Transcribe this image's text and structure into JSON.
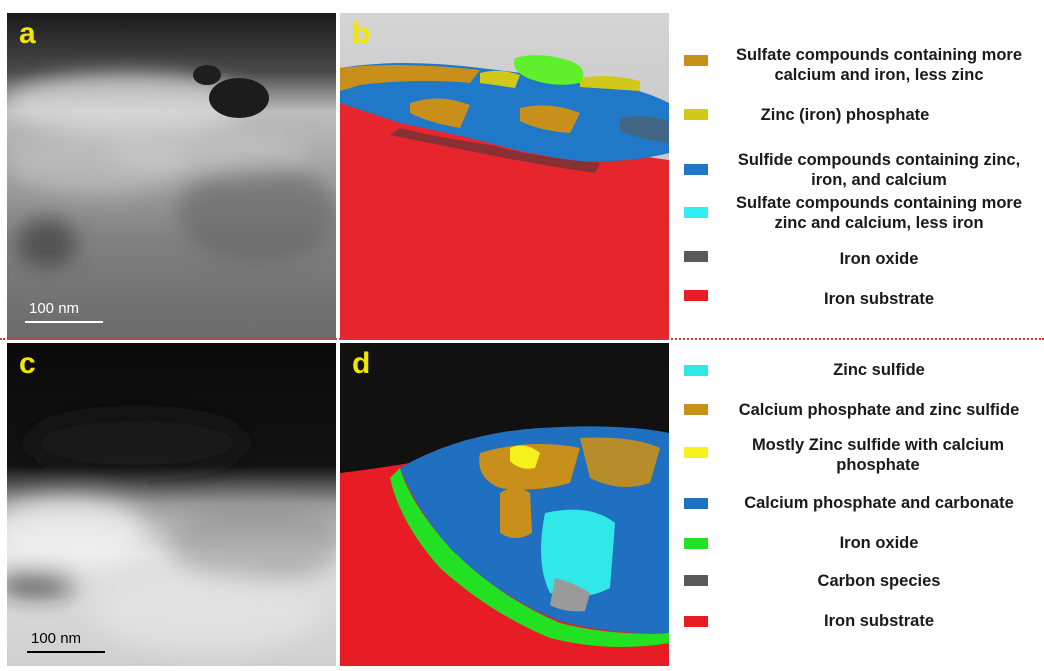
{
  "panels": {
    "a": {
      "label": "a",
      "scale_bar": "100 nm"
    },
    "b": {
      "label": "b"
    },
    "c": {
      "label": "c",
      "scale_bar": "100 nm"
    },
    "d": {
      "label": "d"
    }
  },
  "legend_top": [
    {
      "text": "Sulfate compounds containing more calcium and iron, less zinc",
      "color": "#c8901a"
    },
    {
      "text": "Zinc (iron) phosphate",
      "color": "#d2c81a"
    },
    {
      "text": "Sulfide compounds containing zinc, iron, and calcium",
      "color": "#1f78c8"
    },
    {
      "text": "Sulfate compounds containing more zinc and calcium, less iron",
      "color": "#2ef0f0"
    },
    {
      "text": "Iron oxide",
      "color": "#5a5a5a"
    },
    {
      "text": "Iron substrate",
      "color": "#e81c24"
    }
  ],
  "legend_bottom": [
    {
      "text": "Zinc sulfide",
      "color": "#30e8e8"
    },
    {
      "text": "Calcium phosphate and zinc sulfide",
      "color": "#c8901a"
    },
    {
      "text": "Mostly Zinc sulfide with calcium phosphate",
      "color": "#f4f21a"
    },
    {
      "text": "Calcium phosphate and carbonate",
      "color": "#1f70c0"
    },
    {
      "text": "Iron oxide",
      "color": "#22e022"
    },
    {
      "text": "Carbon species",
      "color": "#5a5a5a"
    },
    {
      "text": "Iron substrate",
      "color": "#e81c24"
    }
  ],
  "colors": {
    "divider": "#d63a3a",
    "panel_label": "#f2e600"
  }
}
